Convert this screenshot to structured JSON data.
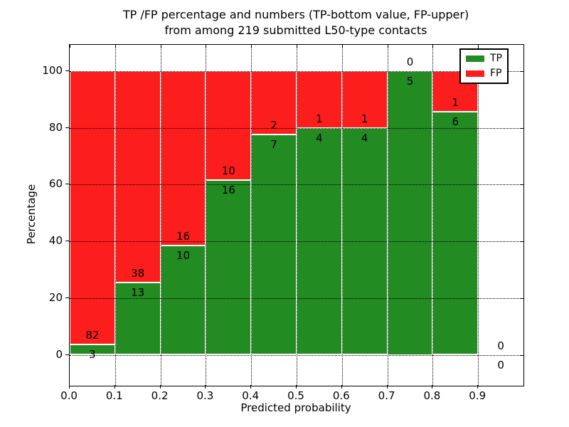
{
  "figure": {
    "title_line1": "TP /FP percentage and numbers (TP-bottom value, FP-upper)",
    "title_line2": "from among 219 submitted L50-type contacts",
    "xlabel": "Predicted probability",
    "ylabel": "Percentage"
  },
  "legend": {
    "items": [
      {
        "label": "TP",
        "color": "#228B22"
      },
      {
        "label": "FP",
        "color": "#FC1D1D"
      }
    ]
  },
  "chart_data": {
    "type": "bar",
    "stacked": true,
    "title": "TP /FP percentage and numbers (TP-bottom value, FP-upper) from among 219 submitted L50-type contacts",
    "xlabel": "Predicted probability",
    "ylabel": "Percentage",
    "xlim": [
      0.0,
      1.0
    ],
    "ylim": [
      -11,
      109
    ],
    "xticks": [
      "0.0",
      "0.1",
      "0.2",
      "0.3",
      "0.4",
      "0.5",
      "0.6",
      "0.7",
      "0.8",
      "0.9"
    ],
    "yticks": [
      "0",
      "20",
      "40",
      "60",
      "80",
      "100"
    ],
    "grid": "dotted, both axes, drawn over bars",
    "legend_position": "upper right",
    "bin_width": 0.1,
    "total_contacts": 219,
    "series_colors": {
      "TP": "#228B22",
      "FP": "#FC1D1D"
    },
    "bins": [
      {
        "x_range": [
          0.0,
          0.1
        ],
        "tp": 3,
        "fp": 82,
        "tp_pct": 3.5
      },
      {
        "x_range": [
          0.1,
          0.2
        ],
        "tp": 13,
        "fp": 38,
        "tp_pct": 25.5
      },
      {
        "x_range": [
          0.2,
          0.3
        ],
        "tp": 10,
        "fp": 16,
        "tp_pct": 38.5
      },
      {
        "x_range": [
          0.3,
          0.4
        ],
        "tp": 16,
        "fp": 10,
        "tp_pct": 61.5
      },
      {
        "x_range": [
          0.4,
          0.5
        ],
        "tp": 7,
        "fp": 2,
        "tp_pct": 77.8
      },
      {
        "x_range": [
          0.5,
          0.6
        ],
        "tp": 4,
        "fp": 1,
        "tp_pct": 80.0
      },
      {
        "x_range": [
          0.6,
          0.7
        ],
        "tp": 4,
        "fp": 1,
        "tp_pct": 80.0
      },
      {
        "x_range": [
          0.7,
          0.8
        ],
        "tp": 5,
        "fp": 0,
        "tp_pct": 100.0
      },
      {
        "x_range": [
          0.8,
          0.9
        ],
        "tp": 6,
        "fp": 1,
        "tp_pct": 85.7
      },
      {
        "x_range": [
          0.9,
          1.0
        ],
        "tp": 0,
        "fp": 0,
        "tp_pct": 0.0
      }
    ]
  }
}
